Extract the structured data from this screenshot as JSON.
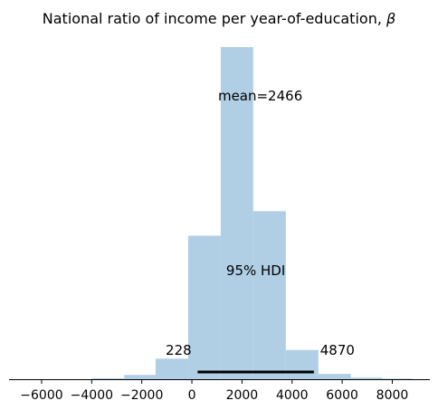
{
  "chart_data": {
    "type": "histogram",
    "title": "National ratio of income per year-of-education, ",
    "title_symbol": "β",
    "xlabel": "",
    "ylabel": "",
    "xlim": [
      -7300,
      9500
    ],
    "ylim": [
      0,
      1.0
    ],
    "bins": [
      {
        "x0": -4000,
        "x1": -2700,
        "density": 0.003
      },
      {
        "x0": -2700,
        "x1": -1450,
        "density": 0.013
      },
      {
        "x0": -1450,
        "x1": -150,
        "density": 0.062
      },
      {
        "x0": -150,
        "x1": 1150,
        "density": 0.432
      },
      {
        "x0": 1150,
        "x1": 2450,
        "density": 1.0
      },
      {
        "x0": 2450,
        "x1": 3750,
        "density": 0.506
      },
      {
        "x0": 3750,
        "x1": 5050,
        "density": 0.088
      },
      {
        "x0": 5050,
        "x1": 6350,
        "density": 0.016
      },
      {
        "x0": 6350,
        "x1": 7600,
        "density": 0.005
      },
      {
        "x0": 7600,
        "x1": 8800,
        "density": 0.002
      }
    ],
    "x_ticks": [
      -6000,
      -4000,
      -2000,
      0,
      2000,
      4000,
      6000,
      8000
    ],
    "x_tick_labels": [
      "−6000",
      "−4000",
      "−2000",
      "0",
      "2000",
      "4000",
      "6000",
      "8000"
    ],
    "mean_label": "mean=2466",
    "hdi": {
      "low": 228,
      "high": 4870,
      "label": "95% HDI",
      "low_label": "228",
      "high_label": "4870"
    },
    "colors": {
      "bar": "#b0cfe5",
      "hdi_line": "#000000",
      "axis": "#000000"
    }
  }
}
